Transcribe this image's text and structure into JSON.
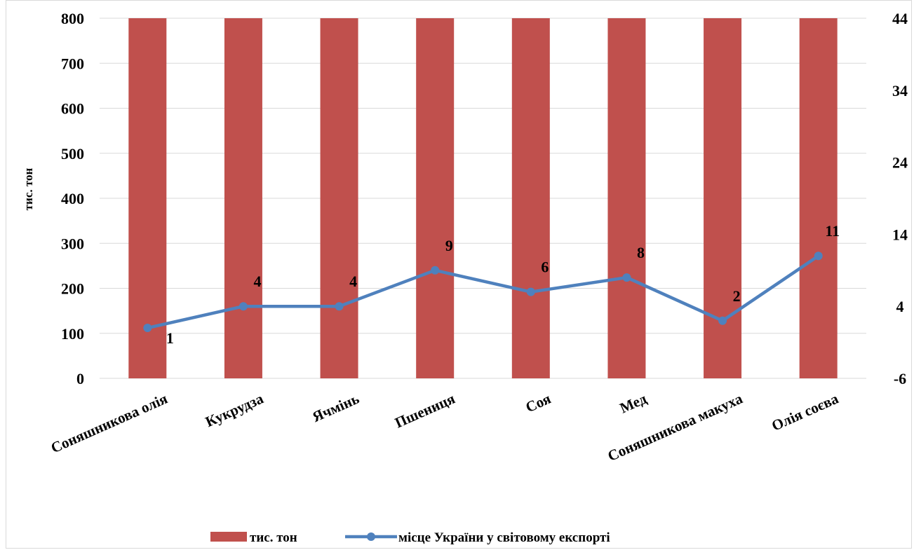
{
  "chart_data": {
    "type": "bar+line",
    "title": "",
    "categories": [
      "Соняшникова олія",
      "Кукрудза",
      "Ячмінь",
      "Пшениця",
      "Соя",
      "Мед",
      "Соняшникова макуха",
      "Олія соєва"
    ],
    "series": [
      {
        "name": "тис. тон",
        "type": "bar",
        "axis": "left",
        "color": "#C0504D",
        "values": [
          800,
          800,
          800,
          800,
          800,
          800,
          800,
          800
        ]
      },
      {
        "name": "місце України у світовому експорті",
        "type": "line",
        "axis": "right",
        "color": "#4F81BD",
        "values": [
          1,
          4,
          4,
          9,
          6,
          8,
          2,
          11
        ],
        "data_labels": [
          "1",
          "4",
          "4",
          "9",
          "6",
          "8",
          "2",
          "11"
        ]
      }
    ],
    "y_left": {
      "label": "тис. тон",
      "min": 0,
      "max": 800,
      "ticks": [
        "0",
        "100",
        "200",
        "300",
        "400",
        "500",
        "600",
        "700",
        "800"
      ]
    },
    "y_right": {
      "label": "",
      "min": -6,
      "max": 44,
      "ticks": [
        "-6",
        "4",
        "14",
        "24",
        "34",
        "44"
      ]
    },
    "grid": true,
    "legend_position": "bottom"
  }
}
